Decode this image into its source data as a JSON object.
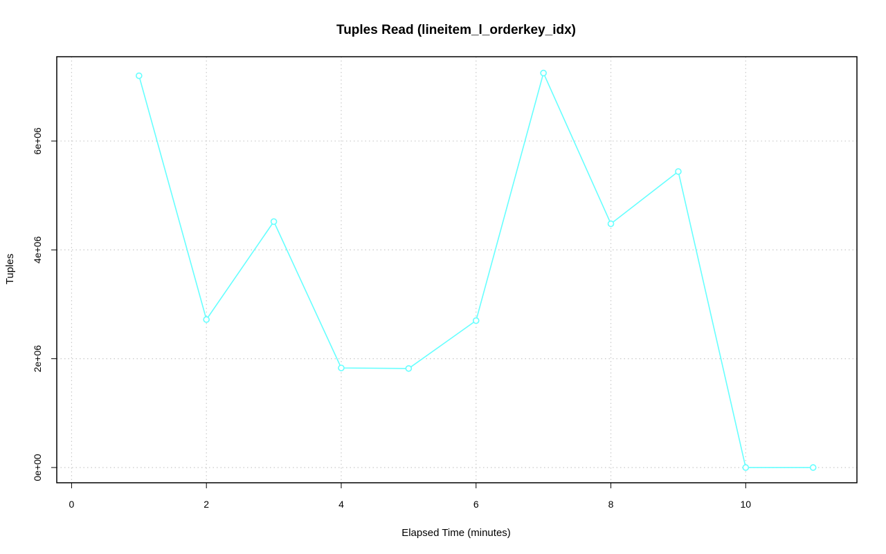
{
  "chart_data": {
    "type": "line",
    "title": "Tuples Read (lineitem_l_orderkey_idx)",
    "xlabel": "Elapsed Time (minutes)",
    "ylabel": "Tuples",
    "xlim": [
      -0.22,
      11.65
    ],
    "ylim": [
      -280000,
      7550000
    ],
    "x_ticks": [
      0,
      2,
      4,
      6,
      8,
      10
    ],
    "x_tick_labels": [
      "0",
      "2",
      "4",
      "6",
      "8",
      "10"
    ],
    "y_ticks": [
      0,
      2000000,
      4000000,
      6000000
    ],
    "y_tick_labels": [
      "0e+00",
      "2e+06",
      "4e+06",
      "6e+06"
    ],
    "grid": true,
    "series": [
      {
        "color": "#66ffff",
        "marker": "circle",
        "x": [
          1,
          2,
          3,
          4,
          5,
          6,
          7,
          8,
          9,
          10,
          11
        ],
        "y": [
          7200000,
          2720000,
          4520000,
          1830000,
          1820000,
          2700000,
          7250000,
          4480000,
          5440000,
          0,
          0
        ]
      }
    ]
  }
}
